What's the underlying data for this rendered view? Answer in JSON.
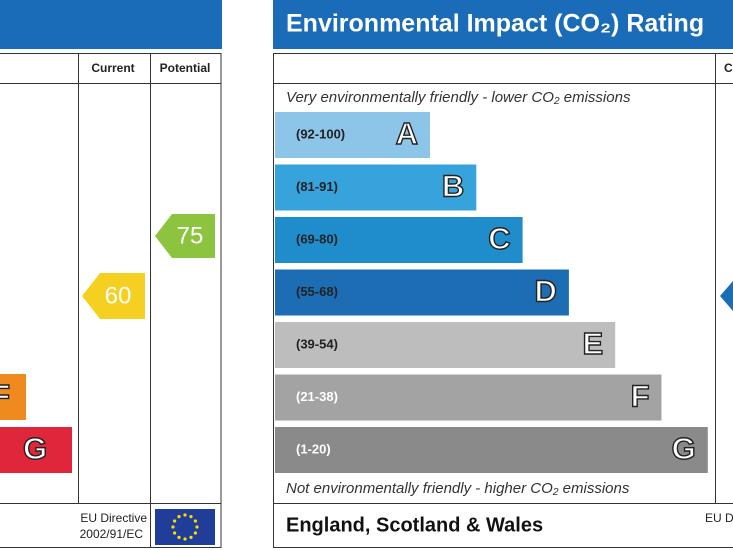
{
  "left_panel": {
    "columns": [
      "Current",
      "Potential"
    ],
    "bands": [
      {
        "letter": "F"
      },
      {
        "letter": "G"
      }
    ],
    "current": 60,
    "potential": 75,
    "footer": {
      "directive": "EU Directive",
      "code": "2002/91/EC"
    }
  },
  "right_panel": {
    "title": "Environmental Impact (CO₂) Rating",
    "column": "Current",
    "top_note": "Very environmentally friendly - lower CO₂ emissions",
    "bottom_note": "Not environmentally friendly - higher CO₂ emissions",
    "bands": [
      {
        "range": "(92-100)",
        "letter": "A"
      },
      {
        "range": "(81-91)",
        "letter": "B"
      },
      {
        "range": "(69-80)",
        "letter": "C"
      },
      {
        "range": "(55-68)",
        "letter": "D"
      },
      {
        "range": "(39-54)",
        "letter": "E"
      },
      {
        "range": "(21-38)",
        "letter": "F"
      },
      {
        "range": "(1-20)",
        "letter": "G"
      }
    ],
    "footer": {
      "region": "England, Scotland & Wales",
      "directive": "EU Directive"
    }
  }
}
